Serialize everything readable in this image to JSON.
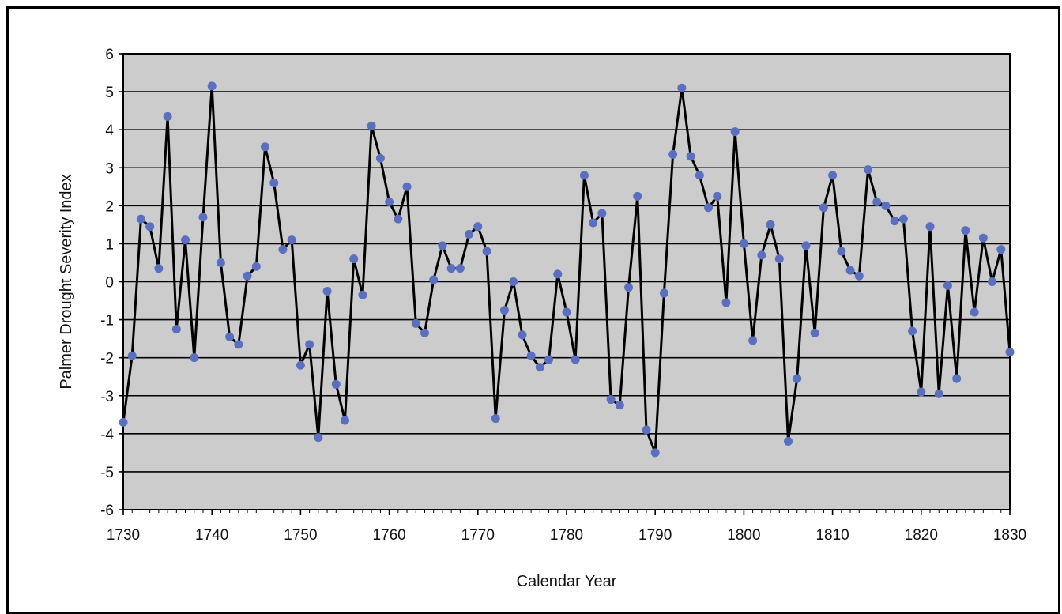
{
  "chart_data": {
    "type": "line",
    "xlabel": "Calendar Year",
    "ylabel": "Palmer Drought Severity Index",
    "xlim": [
      1730,
      1830
    ],
    "ylim": [
      -6,
      6
    ],
    "x_ticks": [
      1730,
      1740,
      1750,
      1760,
      1770,
      1780,
      1790,
      1800,
      1810,
      1820,
      1830
    ],
    "y_ticks": [
      6,
      5,
      4,
      3,
      2,
      1,
      0,
      -1,
      -2,
      -3,
      -4,
      -5,
      -6
    ],
    "grid": true,
    "plot_background": "#cccccc",
    "line_color": "#000000",
    "marker_color": "#5a6fbe",
    "series": [
      {
        "x": [
          1730,
          1731,
          1732,
          1733,
          1734,
          1735,
          1736,
          1737,
          1738,
          1739,
          1740,
          1741,
          1742,
          1743,
          1744,
          1745,
          1746,
          1747,
          1748,
          1749,
          1750,
          1751,
          1752,
          1753,
          1754,
          1755,
          1756,
          1757,
          1758,
          1759,
          1760,
          1761,
          1762,
          1763,
          1764,
          1765,
          1766,
          1767,
          1768,
          1769,
          1770,
          1771,
          1772,
          1773,
          1774,
          1775,
          1776,
          1777,
          1778,
          1779,
          1780,
          1781,
          1782,
          1783,
          1784,
          1785,
          1786,
          1787,
          1788,
          1789,
          1790,
          1791,
          1792,
          1793,
          1794,
          1795,
          1796,
          1797,
          1798,
          1799,
          1800,
          1801,
          1802,
          1803,
          1804,
          1805,
          1806,
          1807,
          1808,
          1809,
          1810,
          1811,
          1812,
          1813,
          1814,
          1815,
          1816,
          1817,
          1818,
          1819,
          1820,
          1821,
          1822,
          1823,
          1824,
          1825,
          1826,
          1827,
          1828,
          1829,
          1830
        ],
        "values": [
          -3.7,
          -1.95,
          1.65,
          1.45,
          0.35,
          4.35,
          -1.25,
          1.1,
          -2.0,
          1.7,
          5.15,
          0.5,
          -1.45,
          -1.65,
          0.15,
          0.4,
          3.55,
          2.6,
          0.85,
          1.1,
          -2.2,
          -1.65,
          -4.1,
          -0.25,
          -2.7,
          -3.65,
          0.6,
          -0.35,
          4.1,
          3.25,
          2.1,
          1.65,
          2.5,
          -1.1,
          -1.35,
          0.05,
          0.95,
          0.35,
          0.35,
          1.25,
          1.45,
          0.8,
          -3.6,
          -0.75,
          0.0,
          -1.4,
          -1.95,
          -2.25,
          -2.05,
          0.2,
          -0.8,
          -2.05,
          2.8,
          1.55,
          1.8,
          -3.1,
          -3.25,
          -0.15,
          2.25,
          -3.9,
          -4.5,
          -0.3,
          3.35,
          5.1,
          3.3,
          2.8,
          1.95,
          2.25,
          -0.55,
          3.95,
          1.0,
          -1.55,
          0.7,
          1.5,
          0.6,
          -4.2,
          -2.55,
          0.95,
          -1.35,
          1.95,
          2.8,
          0.8,
          0.3,
          0.15,
          2.95,
          2.1,
          2.0,
          1.6,
          1.65,
          -1.3,
          -2.9,
          1.45,
          -2.95,
          -0.1,
          -2.55,
          1.35,
          -0.8,
          1.15,
          0.0,
          0.85,
          -1.85
        ]
      }
    ]
  }
}
